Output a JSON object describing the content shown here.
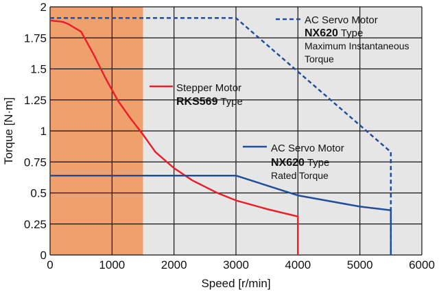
{
  "chart_data": {
    "type": "line",
    "xlabel": "Speed [r/min]",
    "ylabel": "Torque [N·m]",
    "xlim": [
      0,
      6000
    ],
    "ylim": [
      0,
      2
    ],
    "x_ticks": [
      "0",
      "1000",
      "2000",
      "3000",
      "4000",
      "5000",
      "6000"
    ],
    "y_ticks": [
      "0",
      "0.25",
      "0.5",
      "0.75",
      "1",
      "1.25",
      "1.5",
      "1.75",
      "2"
    ],
    "grid": true,
    "plot_background": "#e6e6e6",
    "highlight_region": {
      "x_from": 0,
      "x_to": 1500,
      "color": "#f0a06c"
    },
    "series": [
      {
        "key": "stepper",
        "color": "#e8202a",
        "style": "solid",
        "label": {
          "line1": "Stepper Motor",
          "model": "RKS569",
          "suffix": " Type"
        },
        "x": [
          0,
          200,
          300,
          400,
          500,
          700,
          900,
          1100,
          1300,
          1500,
          1700,
          2000,
          2300,
          2700,
          3000,
          3500,
          4000,
          4000
        ],
        "y": [
          1.89,
          1.88,
          1.86,
          1.83,
          1.8,
          1.62,
          1.42,
          1.24,
          1.1,
          0.97,
          0.83,
          0.7,
          0.6,
          0.5,
          0.44,
          0.37,
          0.31,
          0
        ]
      },
      {
        "key": "ac_max",
        "color": "#1f4e9c",
        "style": "dashed",
        "label": {
          "line1": "AC Servo Motor",
          "model": "NX620",
          "suffix": " Type",
          "line3": "Maximum Instantaneous",
          "line4": "Torque"
        },
        "x": [
          0,
          3000,
          5500,
          5500
        ],
        "y": [
          1.91,
          1.91,
          0.83,
          0
        ]
      },
      {
        "key": "ac_rated",
        "color": "#1f4e9c",
        "style": "solid",
        "label": {
          "line1": "AC Servo Motor",
          "model": "NX620",
          "suffix": " Type",
          "line3": "Rated Torque"
        },
        "x": [
          0,
          3000,
          4000,
          5000,
          5500,
          5500
        ],
        "y": [
          0.64,
          0.64,
          0.48,
          0.39,
          0.36,
          0
        ]
      }
    ]
  }
}
